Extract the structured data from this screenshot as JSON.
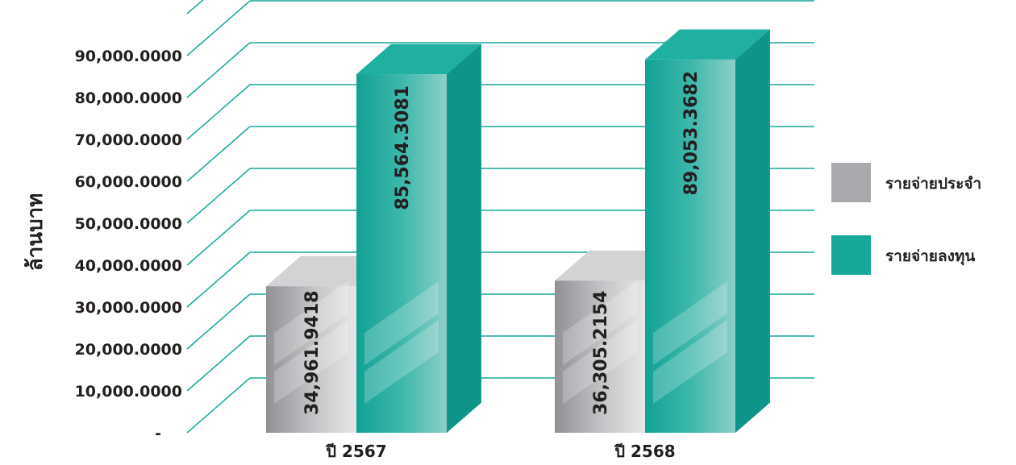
{
  "chart_data": {
    "type": "bar",
    "categories": [
      "ปี 2567",
      "ปี 2568"
    ],
    "series": [
      {
        "name": "รายจ่ายประจำ",
        "values": [
          34961.9418,
          36305.2154
        ],
        "labels": [
          "34,961.9418",
          "36,305.2154"
        ],
        "color": "#a7a9ac"
      },
      {
        "name": "รายจ่ายลงทุน",
        "values": [
          85564.3081,
          89053.3682
        ],
        "labels": [
          "85,564.3081",
          "89,053.3682"
        ],
        "color": "#16a89b"
      }
    ],
    "ylabel": "ล้านบาท",
    "yticks": [
      {
        "value": 0,
        "label": "-"
      },
      {
        "value": 10000,
        "label": "10,000.0000"
      },
      {
        "value": 20000,
        "label": "20,000.0000"
      },
      {
        "value": 30000,
        "label": "30,000.0000"
      },
      {
        "value": 40000,
        "label": "40,000.0000"
      },
      {
        "value": 50000,
        "label": "50,000.0000"
      },
      {
        "value": 60000,
        "label": "60,000.0000"
      },
      {
        "value": 70000,
        "label": "70,000.0000"
      },
      {
        "value": 80000,
        "label": "80,000.0000"
      },
      {
        "value": 90000,
        "label": "90,000.0000"
      }
    ],
    "ylim": [
      0,
      100000
    ],
    "legend_position": "right",
    "grid": true,
    "grid_color": "#16a89b",
    "style": "3d-bar"
  }
}
